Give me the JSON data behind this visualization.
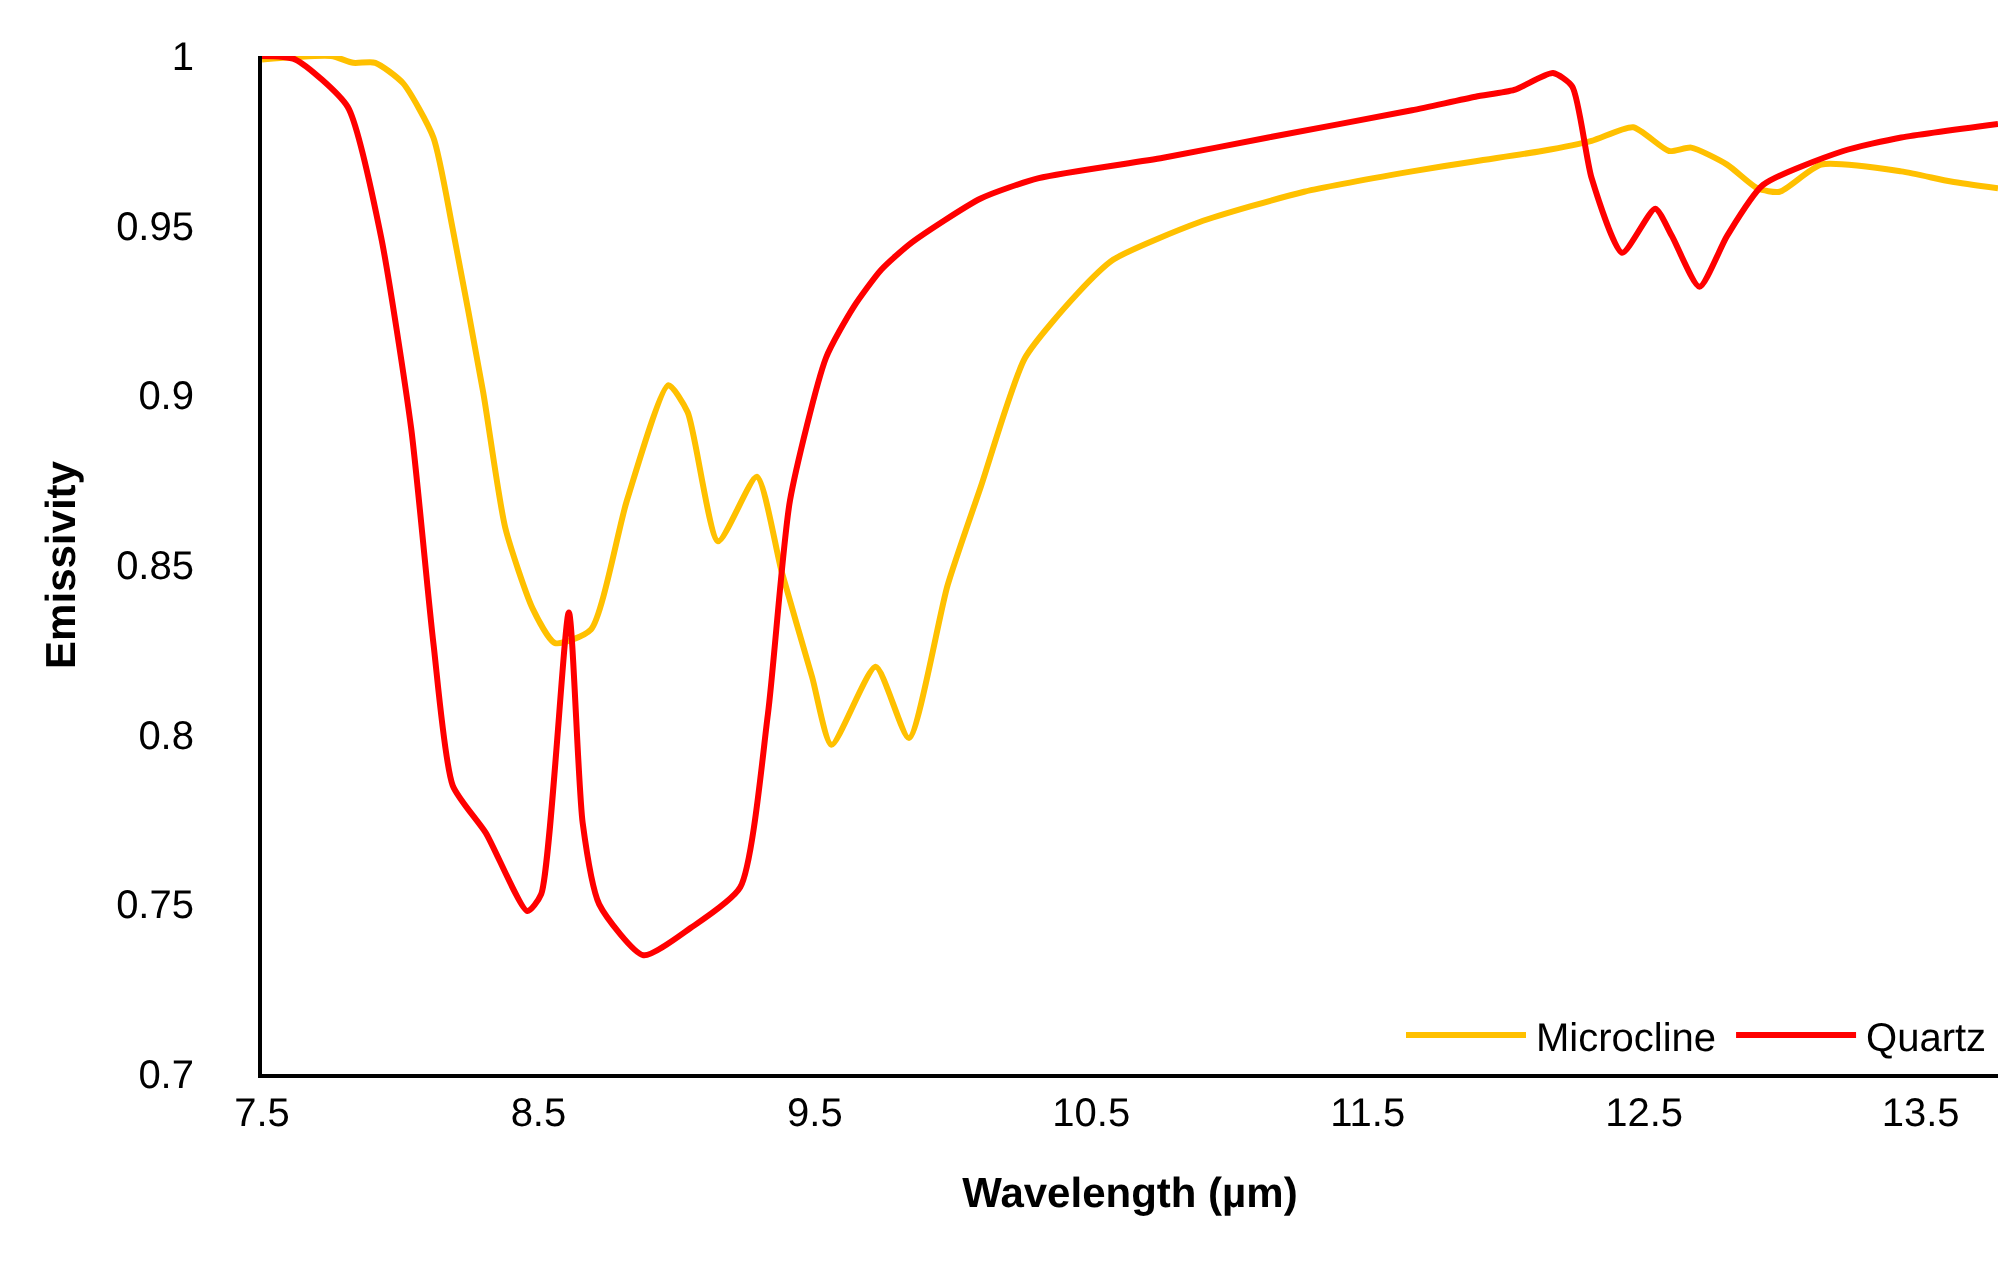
{
  "chart_data": {
    "type": "line",
    "xlabel": "Wavelength (µm)",
    "ylabel": "Emissivity",
    "xlim": [
      7.5,
      13.78
    ],
    "ylim": [
      0.7,
      1
    ],
    "xticks": [
      7.5,
      8.5,
      9.5,
      10.5,
      11.5,
      12.5,
      13.5
    ],
    "yticks": [
      0.7,
      0.75,
      0.8,
      0.85,
      0.9,
      0.95,
      1
    ],
    "grid": false,
    "legend": "bottom right",
    "marker": "none",
    "line_style": "solid",
    "series": [
      {
        "name": "Microcline",
        "color": "#ffc000",
        "x": [
          7.5,
          7.75,
          7.83,
          7.91,
          8.01,
          8.12,
          8.19,
          8.3,
          8.38,
          8.48,
          8.56,
          8.69,
          8.82,
          8.97,
          9.04,
          9.15,
          9.29,
          9.38,
          9.49,
          9.56,
          9.72,
          9.84,
          9.98,
          10.1,
          10.26,
          10.45,
          10.58,
          10.89,
          11.27,
          11.66,
          11.89,
          12.13,
          12.31,
          12.46,
          12.59,
          12.67,
          12.8,
          12.91,
          12.99,
          13.14,
          13.43,
          13.61,
          13.78
        ],
        "values": [
          0.999,
          1.0,
          0.998,
          0.998,
          0.992,
          0.976,
          0.949,
          0.901,
          0.861,
          0.837,
          0.827,
          0.831,
          0.869,
          0.903,
          0.895,
          0.857,
          0.876,
          0.848,
          0.817,
          0.797,
          0.82,
          0.799,
          0.844,
          0.873,
          0.911,
          0.93,
          0.94,
          0.951,
          0.96,
          0.966,
          0.969,
          0.972,
          0.975,
          0.979,
          0.972,
          0.973,
          0.968,
          0.961,
          0.96,
          0.968,
          0.966,
          0.963,
          0.961
        ]
      },
      {
        "name": "Quartz",
        "color": "#ff0000",
        "x": [
          7.5,
          7.62,
          7.81,
          7.93,
          8.04,
          8.12,
          8.19,
          8.31,
          8.46,
          8.51,
          8.61,
          8.66,
          8.72,
          8.88,
          9.05,
          9.23,
          9.33,
          9.41,
          9.54,
          9.64,
          9.74,
          9.85,
          10.1,
          10.31,
          10.76,
          11.14,
          11.66,
          11.89,
          12.03,
          12.17,
          12.24,
          12.31,
          12.42,
          12.54,
          12.6,
          12.7,
          12.8,
          12.93,
          13.22,
          13.43,
          13.78
        ],
        "values": [
          1.0,
          0.999,
          0.985,
          0.947,
          0.89,
          0.827,
          0.785,
          0.771,
          0.748,
          0.753,
          0.836,
          0.774,
          0.75,
          0.735,
          0.743,
          0.755,
          0.806,
          0.869,
          0.911,
          0.926,
          0.937,
          0.945,
          0.958,
          0.964,
          0.97,
          0.976,
          0.984,
          0.988,
          0.99,
          0.995,
          0.991,
          0.964,
          0.942,
          0.955,
          0.947,
          0.932,
          0.947,
          0.962,
          0.972,
          0.976,
          0.98
        ]
      }
    ]
  }
}
